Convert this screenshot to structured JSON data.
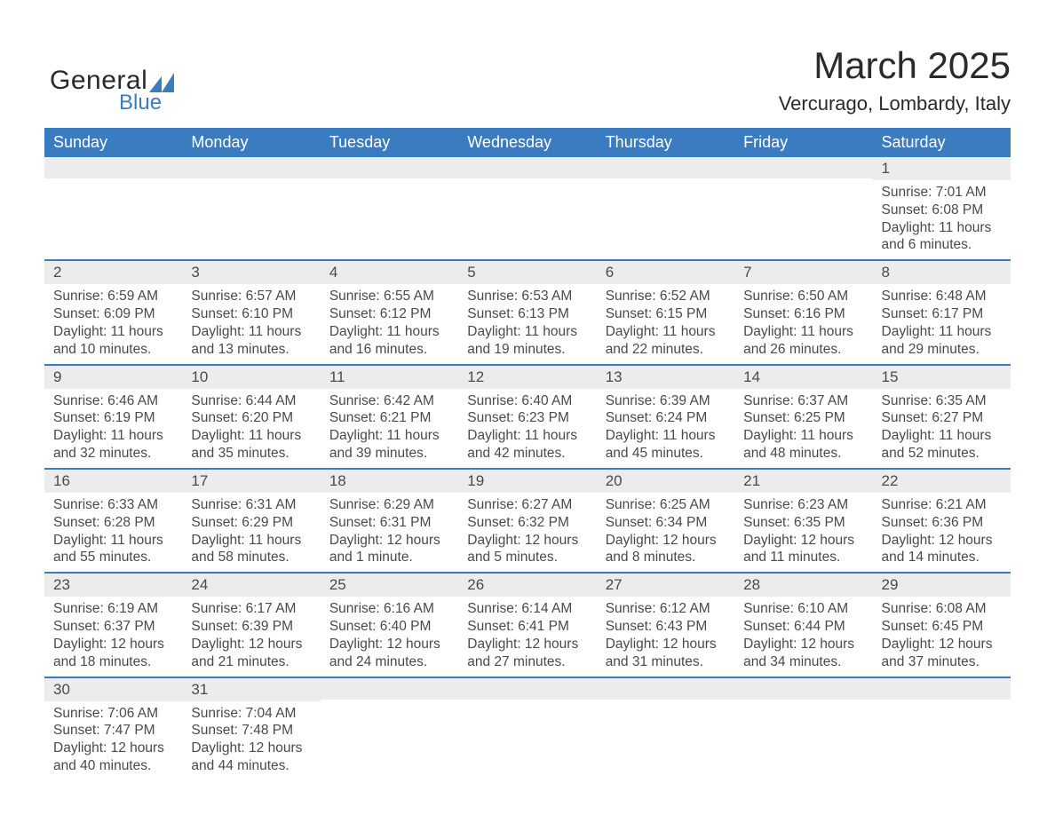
{
  "logo": {
    "text_general": "General",
    "text_blue": "Blue",
    "swoosh_color": "#3a7cbf"
  },
  "header": {
    "month_title": "March 2025",
    "location": "Vercurago, Lombardy, Italy"
  },
  "colors": {
    "header_bg": "#3a7cbf",
    "header_text": "#ffffff",
    "daynum_bg": "#ececec",
    "row_border": "#3a7cbf",
    "body_text": "#4a4a4a",
    "page_bg": "#ffffff"
  },
  "day_headers": [
    "Sunday",
    "Monday",
    "Tuesday",
    "Wednesday",
    "Thursday",
    "Friday",
    "Saturday"
  ],
  "weeks": [
    [
      {
        "day": "",
        "lines": []
      },
      {
        "day": "",
        "lines": []
      },
      {
        "day": "",
        "lines": []
      },
      {
        "day": "",
        "lines": []
      },
      {
        "day": "",
        "lines": []
      },
      {
        "day": "",
        "lines": []
      },
      {
        "day": "1",
        "lines": [
          "Sunrise: 7:01 AM",
          "Sunset: 6:08 PM",
          "Daylight: 11 hours and 6 minutes."
        ]
      }
    ],
    [
      {
        "day": "2",
        "lines": [
          "Sunrise: 6:59 AM",
          "Sunset: 6:09 PM",
          "Daylight: 11 hours and 10 minutes."
        ]
      },
      {
        "day": "3",
        "lines": [
          "Sunrise: 6:57 AM",
          "Sunset: 6:10 PM",
          "Daylight: 11 hours and 13 minutes."
        ]
      },
      {
        "day": "4",
        "lines": [
          "Sunrise: 6:55 AM",
          "Sunset: 6:12 PM",
          "Daylight: 11 hours and 16 minutes."
        ]
      },
      {
        "day": "5",
        "lines": [
          "Sunrise: 6:53 AM",
          "Sunset: 6:13 PM",
          "Daylight: 11 hours and 19 minutes."
        ]
      },
      {
        "day": "6",
        "lines": [
          "Sunrise: 6:52 AM",
          "Sunset: 6:15 PM",
          "Daylight: 11 hours and 22 minutes."
        ]
      },
      {
        "day": "7",
        "lines": [
          "Sunrise: 6:50 AM",
          "Sunset: 6:16 PM",
          "Daylight: 11 hours and 26 minutes."
        ]
      },
      {
        "day": "8",
        "lines": [
          "Sunrise: 6:48 AM",
          "Sunset: 6:17 PM",
          "Daylight: 11 hours and 29 minutes."
        ]
      }
    ],
    [
      {
        "day": "9",
        "lines": [
          "Sunrise: 6:46 AM",
          "Sunset: 6:19 PM",
          "Daylight: 11 hours and 32 minutes."
        ]
      },
      {
        "day": "10",
        "lines": [
          "Sunrise: 6:44 AM",
          "Sunset: 6:20 PM",
          "Daylight: 11 hours and 35 minutes."
        ]
      },
      {
        "day": "11",
        "lines": [
          "Sunrise: 6:42 AM",
          "Sunset: 6:21 PM",
          "Daylight: 11 hours and 39 minutes."
        ]
      },
      {
        "day": "12",
        "lines": [
          "Sunrise: 6:40 AM",
          "Sunset: 6:23 PM",
          "Daylight: 11 hours and 42 minutes."
        ]
      },
      {
        "day": "13",
        "lines": [
          "Sunrise: 6:39 AM",
          "Sunset: 6:24 PM",
          "Daylight: 11 hours and 45 minutes."
        ]
      },
      {
        "day": "14",
        "lines": [
          "Sunrise: 6:37 AM",
          "Sunset: 6:25 PM",
          "Daylight: 11 hours and 48 minutes."
        ]
      },
      {
        "day": "15",
        "lines": [
          "Sunrise: 6:35 AM",
          "Sunset: 6:27 PM",
          "Daylight: 11 hours and 52 minutes."
        ]
      }
    ],
    [
      {
        "day": "16",
        "lines": [
          "Sunrise: 6:33 AM",
          "Sunset: 6:28 PM",
          "Daylight: 11 hours and 55 minutes."
        ]
      },
      {
        "day": "17",
        "lines": [
          "Sunrise: 6:31 AM",
          "Sunset: 6:29 PM",
          "Daylight: 11 hours and 58 minutes."
        ]
      },
      {
        "day": "18",
        "lines": [
          "Sunrise: 6:29 AM",
          "Sunset: 6:31 PM",
          "Daylight: 12 hours and 1 minute."
        ]
      },
      {
        "day": "19",
        "lines": [
          "Sunrise: 6:27 AM",
          "Sunset: 6:32 PM",
          "Daylight: 12 hours and 5 minutes."
        ]
      },
      {
        "day": "20",
        "lines": [
          "Sunrise: 6:25 AM",
          "Sunset: 6:34 PM",
          "Daylight: 12 hours and 8 minutes."
        ]
      },
      {
        "day": "21",
        "lines": [
          "Sunrise: 6:23 AM",
          "Sunset: 6:35 PM",
          "Daylight: 12 hours and 11 minutes."
        ]
      },
      {
        "day": "22",
        "lines": [
          "Sunrise: 6:21 AM",
          "Sunset: 6:36 PM",
          "Daylight: 12 hours and 14 minutes."
        ]
      }
    ],
    [
      {
        "day": "23",
        "lines": [
          "Sunrise: 6:19 AM",
          "Sunset: 6:37 PM",
          "Daylight: 12 hours and 18 minutes."
        ]
      },
      {
        "day": "24",
        "lines": [
          "Sunrise: 6:17 AM",
          "Sunset: 6:39 PM",
          "Daylight: 12 hours and 21 minutes."
        ]
      },
      {
        "day": "25",
        "lines": [
          "Sunrise: 6:16 AM",
          "Sunset: 6:40 PM",
          "Daylight: 12 hours and 24 minutes."
        ]
      },
      {
        "day": "26",
        "lines": [
          "Sunrise: 6:14 AM",
          "Sunset: 6:41 PM",
          "Daylight: 12 hours and 27 minutes."
        ]
      },
      {
        "day": "27",
        "lines": [
          "Sunrise: 6:12 AM",
          "Sunset: 6:43 PM",
          "Daylight: 12 hours and 31 minutes."
        ]
      },
      {
        "day": "28",
        "lines": [
          "Sunrise: 6:10 AM",
          "Sunset: 6:44 PM",
          "Daylight: 12 hours and 34 minutes."
        ]
      },
      {
        "day": "29",
        "lines": [
          "Sunrise: 6:08 AM",
          "Sunset: 6:45 PM",
          "Daylight: 12 hours and 37 minutes."
        ]
      }
    ],
    [
      {
        "day": "30",
        "lines": [
          "Sunrise: 7:06 AM",
          "Sunset: 7:47 PM",
          "Daylight: 12 hours and 40 minutes."
        ]
      },
      {
        "day": "31",
        "lines": [
          "Sunrise: 7:04 AM",
          "Sunset: 7:48 PM",
          "Daylight: 12 hours and 44 minutes."
        ]
      },
      {
        "day": "",
        "lines": []
      },
      {
        "day": "",
        "lines": []
      },
      {
        "day": "",
        "lines": []
      },
      {
        "day": "",
        "lines": []
      },
      {
        "day": "",
        "lines": []
      }
    ]
  ]
}
